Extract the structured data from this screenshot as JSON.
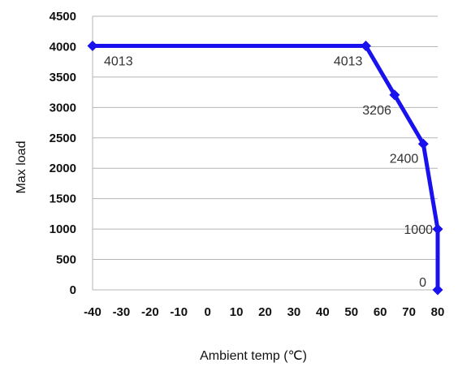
{
  "chart_data": {
    "type": "line",
    "title": "",
    "xlabel": "Ambient temp (℃)",
    "ylabel": "Max load",
    "xlim": [
      -40,
      80
    ],
    "ylim": [
      0,
      4500
    ],
    "x_ticks": [
      -40,
      -30,
      -20,
      -10,
      0,
      10,
      20,
      30,
      40,
      50,
      60,
      70,
      80
    ],
    "x_tick_labels": [
      "-40",
      "-30",
      "-20",
      "-10",
      "0",
      "10",
      "20",
      "30",
      "40",
      "50",
      "60",
      "70",
      "80"
    ],
    "y_ticks": [
      0,
      500,
      1000,
      1500,
      2000,
      2500,
      3000,
      3500,
      4000,
      4500
    ],
    "y_tick_labels": [
      "0",
      "500",
      "1000",
      "1500",
      "2000",
      "2500",
      "3000",
      "3500",
      "4000",
      "4500"
    ],
    "grid": true,
    "legend": "none",
    "series": [
      {
        "color": "#1a12ee",
        "marker": "diamond",
        "points": [
          {
            "x": -40,
            "y": 4013,
            "label": "4013"
          },
          {
            "x": 55,
            "y": 4013,
            "label": "4013"
          },
          {
            "x": 65,
            "y": 3206,
            "label": "3206"
          },
          {
            "x": 75,
            "y": 2400,
            "label": "2400"
          },
          {
            "x": 80,
            "y": 1000,
            "label": "1000"
          },
          {
            "x": 80,
            "y": 0,
            "label": "0"
          }
        ]
      }
    ]
  }
}
